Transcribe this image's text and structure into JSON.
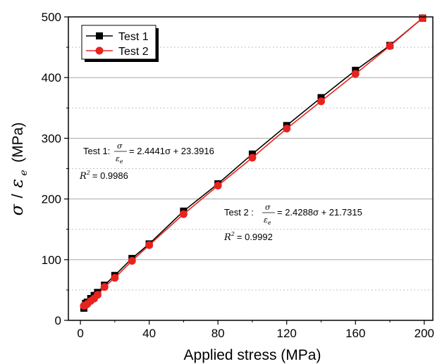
{
  "chart_data": {
    "type": "line",
    "xlabel": "Applied stress (MPa)",
    "ylabel_symbol": "σ",
    "ylabel_divider": "/",
    "ylabel_symbol2": "ε",
    "ylabel_subscript": "e",
    "ylabel_unit": "(MPa)",
    "xlim": [
      -7,
      205
    ],
    "ylim": [
      0,
      500
    ],
    "x_ticks": [
      "0",
      "40",
      "80",
      "120",
      "160",
      "200"
    ],
    "y_ticks": [
      "0",
      "100",
      "200",
      "300",
      "400",
      "500"
    ],
    "x_tick_values": [
      0,
      40,
      80,
      120,
      160,
      200
    ],
    "y_tick_values": [
      0,
      100,
      200,
      300,
      400,
      500
    ],
    "y_minor_values": [
      50,
      150,
      250,
      350,
      450
    ],
    "x_minor_values": [
      20,
      60,
      100,
      140,
      180
    ],
    "grid": "horizontal",
    "legend_position": "top-left",
    "series": [
      {
        "name": "Test 1",
        "color": "#000000",
        "marker": "square",
        "x": [
          2,
          3,
          4,
          6,
          8,
          10,
          14,
          20,
          30,
          40,
          60,
          80,
          100,
          120,
          140,
          160,
          180,
          199
        ],
        "y": [
          20,
          28,
          30,
          36,
          41,
          46,
          58,
          74,
          102,
          126,
          180,
          225,
          274,
          321,
          367,
          412,
          453,
          498
        ]
      },
      {
        "name": "Test 2",
        "color": "#e8231e",
        "marker": "circle",
        "x": [
          2,
          3,
          4,
          6,
          8,
          10,
          14,
          20,
          30,
          40,
          60,
          80,
          100,
          120,
          140,
          160,
          180,
          199
        ],
        "y": [
          24,
          25,
          27,
          32,
          36,
          42,
          55,
          70,
          98,
          124,
          175,
          222,
          268,
          316,
          361,
          406,
          452,
          498
        ]
      }
    ],
    "annotations": {
      "test1": {
        "prefix": "Test 1:",
        "num": "σ",
        "den": "ε",
        "den_sub": "e",
        "equation": "= 2.4441σ + 23.3916",
        "r2_label": "R",
        "r2_sup": "2",
        "r2_value": "= 0.9986"
      },
      "test2": {
        "prefix": "Test 2 :",
        "num": "σ",
        "den": "ε",
        "den_sub": "e",
        "equation": "= 2.4288σ + 21.7315",
        "r2_label": "R",
        "r2_sup": "2",
        "r2_value": "= 0.9992"
      }
    }
  }
}
